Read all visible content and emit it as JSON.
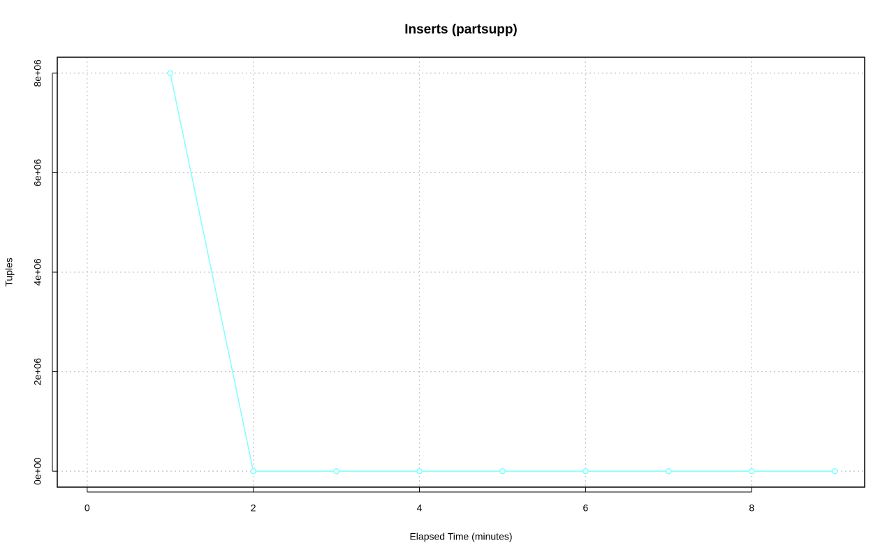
{
  "chart_data": {
    "type": "line",
    "title": "Inserts (partsupp)",
    "x_label": "Elapsed Time (minutes)",
    "y_label": "Tuples",
    "x": [
      1,
      2,
      3,
      4,
      5,
      6,
      7,
      8,
      9
    ],
    "series": [
      {
        "name": "partsupp",
        "color": "#80ffff",
        "values": [
          8000000,
          0,
          0,
          0,
          0,
          0,
          0,
          0,
          0
        ]
      }
    ],
    "xlim": [
      -0.36,
      9.36
    ],
    "ylim": [
      -320000,
      8320000
    ],
    "xticks": [
      0,
      2,
      4,
      6,
      8
    ],
    "yticks": [
      {
        "value": 0,
        "label": "0e+00"
      },
      {
        "value": 2000000,
        "label": "2e+06"
      },
      {
        "value": 4000000,
        "label": "4e+06"
      },
      {
        "value": 6000000,
        "label": "6e+06"
      },
      {
        "value": 8000000,
        "label": "8e+06"
      }
    ],
    "grid": true
  }
}
